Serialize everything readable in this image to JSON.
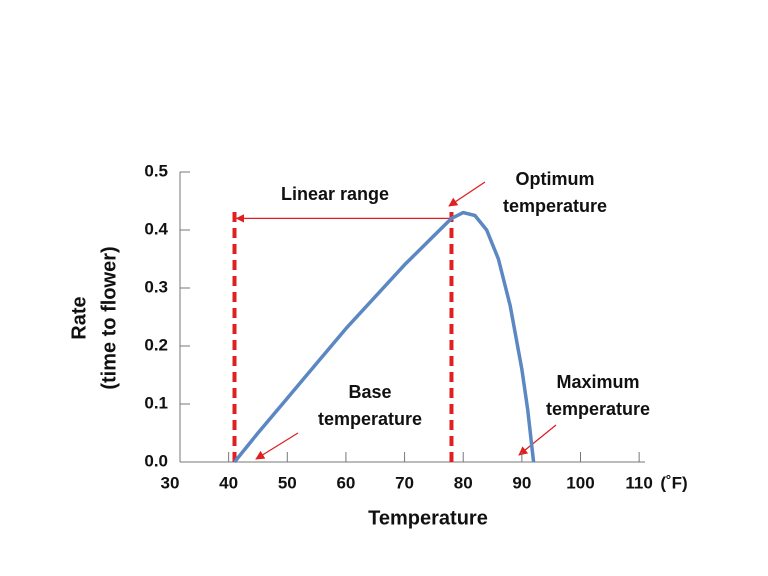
{
  "chart_data": {
    "type": "line",
    "x_label": "Temperature",
    "x_unit": "(˚F)",
    "y_label": [
      "Rate",
      "(time to flower)"
    ],
    "x": [
      41,
      45,
      50,
      55,
      60,
      65,
      70,
      75,
      78,
      80,
      82,
      84,
      86,
      88,
      90,
      91,
      92
    ],
    "series": [
      {
        "color": "#5b87c2",
        "values": [
          0,
          0.05,
          0.11,
          0.17,
          0.23,
          0.285,
          0.34,
          0.39,
          0.42,
          0.43,
          0.425,
          0.4,
          0.35,
          0.27,
          0.16,
          0.09,
          0.0
        ]
      }
    ],
    "xlim": [
      30,
      111
    ],
    "xticks": [
      30,
      40,
      50,
      60,
      70,
      80,
      90,
      100,
      110
    ],
    "ylim": [
      0,
      0.5
    ],
    "yticks": [
      {
        "value": 0,
        "label": "0.0"
      },
      0.1,
      0.2,
      0.3,
      0.4,
      0.5
    ],
    "reference_lines": {
      "color": "#e02020",
      "x": [
        41,
        78
      ],
      "y": 0.42
    },
    "annotations": [
      [
        "Linear range"
      ],
      [
        "Optimum",
        "temperature"
      ],
      [
        "Base",
        "temperature"
      ],
      [
        "Maximum",
        "temperature"
      ]
    ]
  }
}
